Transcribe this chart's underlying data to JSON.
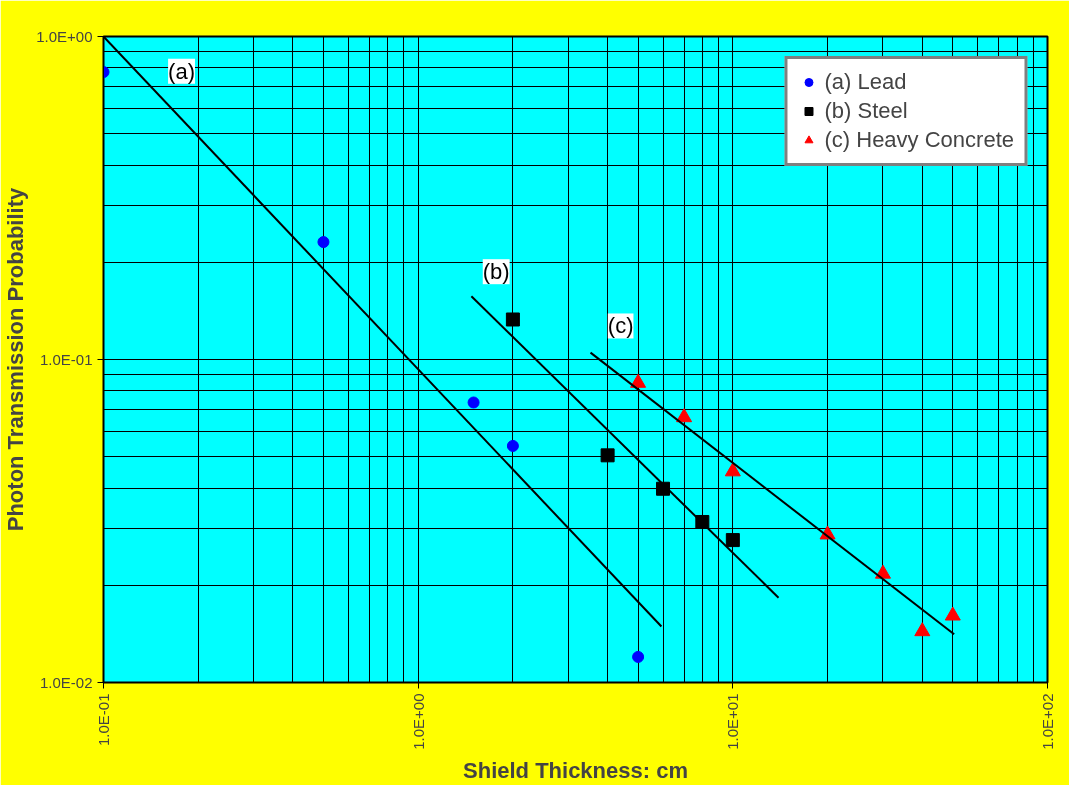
{
  "chart_data": {
    "type": "scatter",
    "xlabel": "Shield Thickness: cm",
    "ylabel": "Photon Transmission Probability",
    "log": "xy",
    "grid": true,
    "legend": "top right",
    "xlim": [
      0.1,
      100
    ],
    "ylim": [
      0.01,
      1
    ],
    "xticks": [
      {
        "value": 0.1,
        "label": "1.0E-01"
      },
      {
        "value": 1,
        "label": "1.0E+00"
      },
      {
        "value": 10,
        "label": "1.0E+01"
      },
      {
        "value": 100,
        "label": "1.0E+02"
      }
    ],
    "yticks": [
      {
        "value": 0.01,
        "label": "1.0E-02"
      },
      {
        "value": 0.1,
        "label": "1.0E-01"
      },
      {
        "value": 1,
        "label": "1.0E+00"
      }
    ],
    "series": [
      {
        "name": "(a) Lead",
        "color": "#0000ff",
        "marker": "circle",
        "x": [
          0.1,
          0.5,
          1.5,
          2,
          5
        ],
        "values": [
          0.776,
          0.231,
          0.0736,
          0.054,
          0.012
        ]
      },
      {
        "name": "(b) Steel",
        "color": "#000000",
        "marker": "square",
        "x": [
          2,
          4,
          6,
          8,
          10
        ],
        "values": [
          0.133,
          0.0505,
          0.0398,
          0.0314,
          0.0276
        ]
      },
      {
        "name": "(c) Heavy Concrete",
        "color": "#ff0000",
        "marker": "triangle",
        "x": [
          5,
          7,
          10,
          20,
          30,
          40,
          50
        ],
        "values": [
          0.0846,
          0.0662,
          0.045,
          0.0287,
          0.0217,
          0.0144,
          0.0161
        ]
      },
      {
        "type": "line",
        "color": "#000000",
        "x": [
          0.1,
          5.93
        ],
        "values": [
          1,
          0.0149
        ]
      },
      {
        "type": "line",
        "color": "#000000",
        "x": [
          1.476,
          13.97
        ],
        "values": [
          0.157,
          0.0183
        ]
      },
      {
        "type": "line",
        "color": "#000000",
        "x": [
          3.53,
          50.5
        ],
        "values": [
          0.105,
          0.0141
        ]
      }
    ],
    "annotations": [
      {
        "text": "(a)",
        "x": 0.177,
        "y": 0.78
      },
      {
        "text": "(b)",
        "x": 1.77,
        "y": 0.187
      },
      {
        "text": "(c)",
        "x": 4.4,
        "y": 0.127
      }
    ]
  }
}
